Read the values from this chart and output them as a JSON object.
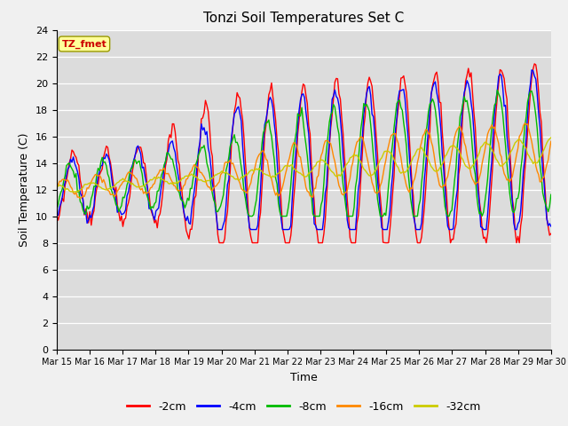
{
  "title": "Tonzi Soil Temperatures Set C",
  "xlabel": "Time",
  "ylabel": "Soil Temperature (C)",
  "ylim": [
    0,
    24
  ],
  "annotation": "TZ_fmet",
  "legend": [
    "-2cm",
    "-4cm",
    "-8cm",
    "-16cm",
    "-32cm"
  ],
  "colors": [
    "#ff0000",
    "#0000ff",
    "#00bb00",
    "#ff8800",
    "#cccc00"
  ],
  "plot_bg_color": "#dcdcdc",
  "fig_bg_color": "#f0f0f0",
  "xtick_labels": [
    "Mar 15",
    "Mar 16",
    "Mar 17",
    "Mar 18",
    "Mar 19",
    "Mar 20",
    "Mar 21",
    "Mar 22",
    "Mar 23",
    "Mar 24",
    "Mar 25",
    "Mar 26",
    "Mar 27",
    "Mar 28",
    "Mar 29",
    "Mar 30"
  ],
  "num_points": 360,
  "days": 15
}
